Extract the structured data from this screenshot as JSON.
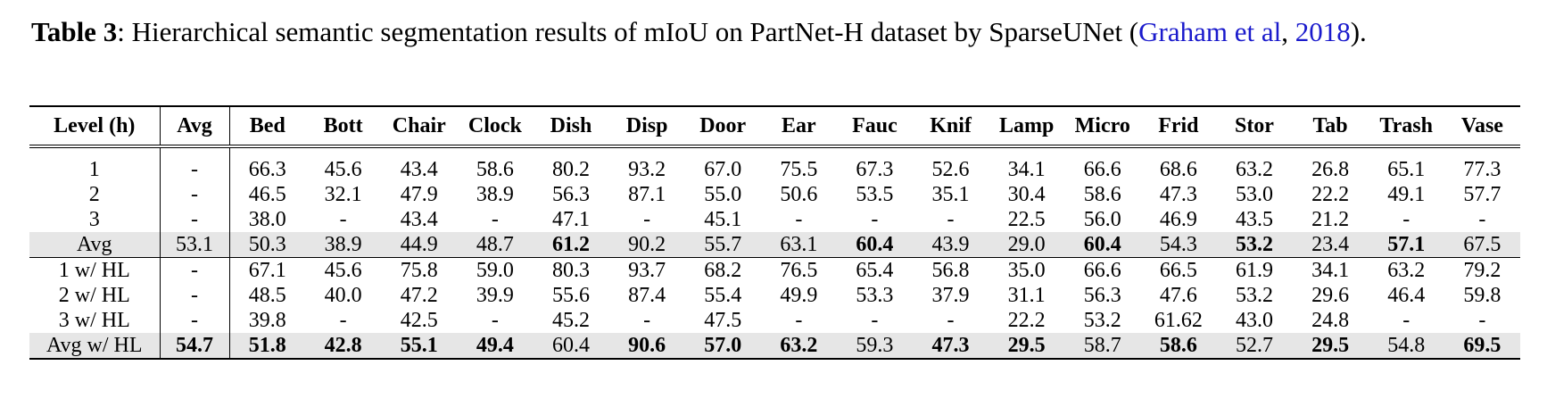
{
  "caption": {
    "label": "Table 3",
    "text": ": Hierarchical semantic segmentation results of mIoU on PartNet-H dataset by SparseUNet (",
    "cite_author": "Graham et al",
    "cite_sep": ", ",
    "cite_year": "2018",
    "tail": ")."
  },
  "table": {
    "headers": [
      "Level (h)",
      "Avg",
      "Bed",
      "Bott",
      "Chair",
      "Clock",
      "Dish",
      "Disp",
      "Door",
      "Ear",
      "Fauc",
      "Knif",
      "Lamp",
      "Micro",
      "Frid",
      "Stor",
      "Tab",
      "Trash",
      "Vase"
    ],
    "group1": [
      {
        "level": "1",
        "cells": [
          "-",
          "66.3",
          "45.6",
          "43.4",
          "58.6",
          "80.2",
          "93.2",
          "67.0",
          "75.5",
          "67.3",
          "52.6",
          "34.1",
          "66.6",
          "68.6",
          "63.2",
          "26.8",
          "65.1",
          "77.3"
        ],
        "bold": []
      },
      {
        "level": "2",
        "cells": [
          "-",
          "46.5",
          "32.1",
          "47.9",
          "38.9",
          "56.3",
          "87.1",
          "55.0",
          "50.6",
          "53.5",
          "35.1",
          "30.4",
          "58.6",
          "47.3",
          "53.0",
          "22.2",
          "49.1",
          "57.7"
        ],
        "bold": []
      },
      {
        "level": "3",
        "cells": [
          "-",
          "38.0",
          "-",
          "43.4",
          "-",
          "47.1",
          "-",
          "45.1",
          "-",
          "-",
          "-",
          "22.5",
          "56.0",
          "46.9",
          "43.5",
          "21.2",
          "-",
          "-"
        ],
        "bold": []
      },
      {
        "level": "Avg",
        "cells": [
          "53.1",
          "50.3",
          "38.9",
          "44.9",
          "48.7",
          "61.2",
          "90.2",
          "55.7",
          "63.1",
          "60.4",
          "43.9",
          "29.0",
          "60.4",
          "54.3",
          "53.2",
          "23.4",
          "57.1",
          "67.5"
        ],
        "bold": [
          5,
          9,
          12,
          14,
          16
        ],
        "shaded": true
      }
    ],
    "group2": [
      {
        "level": "1 w/ HL",
        "cells": [
          "-",
          "67.1",
          "45.6",
          "75.8",
          "59.0",
          "80.3",
          "93.7",
          "68.2",
          "76.5",
          "65.4",
          "56.8",
          "35.0",
          "66.6",
          "66.5",
          "61.9",
          "34.1",
          "63.2",
          "79.2"
        ],
        "bold": []
      },
      {
        "level": "2 w/ HL",
        "cells": [
          "-",
          "48.5",
          "40.0",
          "47.2",
          "39.9",
          "55.6",
          "87.4",
          "55.4",
          "49.9",
          "53.3",
          "37.9",
          "31.1",
          "56.3",
          "47.6",
          "53.2",
          "29.6",
          "46.4",
          "59.8"
        ],
        "bold": []
      },
      {
        "level": "3 w/ HL",
        "cells": [
          "-",
          "39.8",
          "-",
          "42.5",
          "-",
          "45.2",
          "-",
          "47.5",
          "-",
          "-",
          "-",
          "22.2",
          "53.2",
          "61.62",
          "43.0",
          "24.8",
          "-",
          "-"
        ],
        "bold": []
      },
      {
        "level": "Avg w/ HL",
        "cells": [
          "54.7",
          "51.8",
          "42.8",
          "55.1",
          "49.4",
          "60.4",
          "90.6",
          "57.0",
          "63.2",
          "59.3",
          "47.3",
          "29.5",
          "58.7",
          "58.6",
          "52.7",
          "29.5",
          "54.8",
          "69.5"
        ],
        "bold": [
          0,
          1,
          2,
          3,
          4,
          6,
          7,
          8,
          10,
          11,
          13,
          15,
          17
        ],
        "shaded": true
      }
    ]
  }
}
